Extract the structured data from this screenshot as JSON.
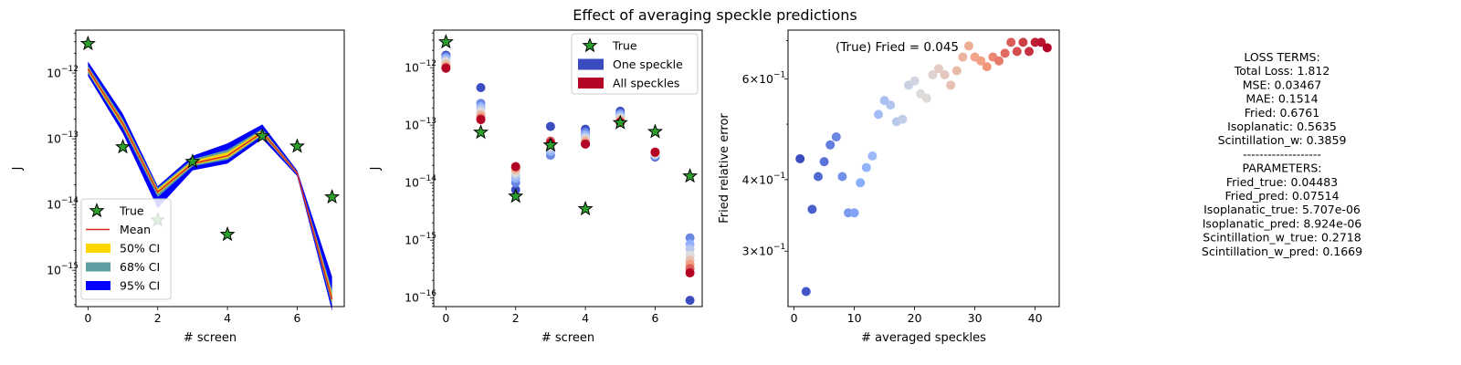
{
  "figure": {
    "title": "Effect of averaging speckle predictions"
  },
  "colors": {
    "star_fill": "#2ca02c",
    "mean_line": "#d62728",
    "ci50": "#ffd700",
    "ci68": "#5f9ea0",
    "ci95": "#0000ff",
    "one_speckle": "#3b4cc0",
    "all_speckles": "#b40426"
  },
  "chart_data": [
    {
      "type": "line",
      "name": "panel-1",
      "xlabel": "# screen",
      "ylabel": "J",
      "yscale": "log",
      "xlim": [
        -0.35,
        7.35
      ],
      "ylim": [
        2.8e-16,
        4.5e-12
      ],
      "xticks": [
        0,
        2,
        4,
        6
      ],
      "yticks": [
        {
          "value": 1e-15,
          "mant": "10",
          "exp": "−15"
        },
        {
          "value": 1e-14,
          "mant": "10",
          "exp": "−14"
        },
        {
          "value": 1e-13,
          "mant": "10",
          "exp": "−13"
        },
        {
          "value": 1e-12,
          "mant": "10",
          "exp": "−12"
        }
      ],
      "x": [
        0,
        1,
        2,
        3,
        4,
        5,
        6,
        7
      ],
      "true_values": [
        2.8e-12,
        7.5e-14,
        5.8e-15,
        4.5e-14,
        3.5e-15,
        1.1e-13,
        7.7e-14,
        1.3e-14
      ],
      "mean": [
        1.15e-12,
        1.7e-13,
        1.55e-14,
        4.2e-14,
        5.5e-14,
        1.25e-13,
        3e-14,
        3.6e-16
      ],
      "ci95_low": [
        9e-13,
        1.2e-13,
        8.8e-15,
        3.3e-14,
        4.2e-14,
        1e-13,
        2.7e-14,
        2.4e-16
      ],
      "ci95_high": [
        1.5e-12,
        2.4e-13,
        1.9e-14,
        5.5e-14,
        8.5e-14,
        1.65e-13,
        3.3e-14,
        8e-16
      ],
      "ci68_low": [
        1e-12,
        1.45e-13,
        1.3e-14,
        3.8e-14,
        4.8e-14,
        1.12e-13,
        2.85e-14,
        2.9e-16
      ],
      "ci68_high": [
        1.3e-12,
        2e-13,
        1.8e-14,
        4.9e-14,
        6.8e-14,
        1.42e-13,
        3.15e-14,
        5e-16
      ],
      "ci50_low": [
        1.05e-12,
        1.55e-13,
        1.45e-14,
        4e-14,
        5.1e-14,
        1.17e-13,
        2.9e-14,
        3.2e-16
      ],
      "ci50_high": [
        1.22e-12,
        1.85e-13,
        1.7e-14,
        4.6e-14,
        6.2e-14,
        1.35e-13,
        3.1e-14,
        4.4e-16
      ],
      "legend": {
        "position": "lower-left",
        "entries": [
          "True",
          "Mean",
          "50% CI",
          "68% CI",
          "95% CI"
        ]
      }
    },
    {
      "type": "scatter",
      "name": "panel-2",
      "xlabel": "# screen",
      "ylabel": "J",
      "yscale": "log",
      "xlim": [
        -0.35,
        7.35
      ],
      "ylim": [
        7e-17,
        4.5e-12
      ],
      "xticks": [
        0,
        2,
        4,
        6
      ],
      "yticks": [
        {
          "value": 1e-16,
          "mant": "10",
          "exp": "−16"
        },
        {
          "value": 1e-15,
          "mant": "10",
          "exp": "−15"
        },
        {
          "value": 1e-14,
          "mant": "10",
          "exp": "−14"
        },
        {
          "value": 1e-13,
          "mant": "10",
          "exp": "−13"
        },
        {
          "value": 1e-12,
          "mant": "10",
          "exp": "−12"
        }
      ],
      "x": [
        0,
        1,
        2,
        3,
        4,
        5,
        6,
        7
      ],
      "true_values": [
        2.8e-12,
        7.5e-14,
        5.8e-15,
        4.5e-14,
        3.5e-15,
        1.1e-13,
        7.7e-14,
        1.3e-14
      ],
      "one_speckle": [
        1.65e-12,
        4.5e-13,
        7.5e-15,
        9.5e-14,
        8.5e-14,
        1.75e-13,
        2.8e-14,
        9e-17
      ],
      "speckle_predictions": [
        [
          1.55e-12,
          1.45e-12,
          1.35e-12,
          1.25e-12,
          1.15e-12,
          1.05e-12,
          1e-12
        ],
        [
          2.4e-13,
          2.1e-13,
          1.9e-13,
          1.7e-13,
          1.55e-13,
          1.4e-13,
          1.3e-13
        ],
        [
          1e-14,
          1.2e-14,
          1.35e-14,
          1.5e-14,
          1.65e-14,
          1.8e-14,
          1.9e-14
        ],
        [
          3e-14,
          3.5e-14,
          3.9e-14,
          4.3e-14,
          4.6e-14,
          5e-14,
          5.3e-14
        ],
        [
          7.5e-14,
          6.8e-14,
          6.2e-14,
          5.8e-14,
          5.4e-14,
          5e-14,
          4.7e-14
        ],
        [
          1.6e-13,
          1.5e-13,
          1.4e-13,
          1.32e-13,
          1.25e-13,
          1.18e-13,
          1.12e-13
        ],
        [
          2.9e-14,
          3e-14,
          3.1e-14,
          3.2e-14,
          3.3e-14,
          3.35e-14,
          3.4e-14
        ],
        [
          1.1e-15,
          8.5e-16,
          7e-16,
          5.5e-16,
          4.5e-16,
          3.8e-16,
          3.2e-16
        ]
      ],
      "all_speckles": [
        9.8e-13,
        1.25e-13,
        1.9e-14,
        4.9e-14,
        4.7e-14,
        1.12e-13,
        3.4e-14,
        2.7e-16
      ],
      "legend": {
        "position": "upper-right",
        "entries": [
          "True",
          "One speckle",
          "All speckles"
        ]
      }
    },
    {
      "type": "scatter",
      "name": "panel-3",
      "xlabel": "# averaged speckles",
      "ylabel": "Fried relative error",
      "yscale": "log",
      "xlim": [
        -1,
        44
      ],
      "ylim": [
        0.24,
        0.73
      ],
      "xticks": [
        0,
        10,
        20,
        30,
        40
      ],
      "yticks": [
        {
          "value": 0.3,
          "mant": "3×10",
          "exp": "−1"
        },
        {
          "value": 0.4,
          "mant": "4×10",
          "exp": "−1"
        },
        {
          "value": 0.6,
          "mant": "6×10",
          "exp": "−1"
        }
      ],
      "annotation": "(True) Fried = 0.045",
      "points_x": [
        1,
        2,
        3,
        4,
        5,
        6,
        7,
        8,
        9,
        10,
        11,
        12,
        13,
        14,
        15,
        16,
        17,
        18,
        19,
        20,
        21,
        22,
        23,
        24,
        25,
        26,
        27,
        28,
        29,
        30,
        31,
        32,
        33,
        34,
        35,
        36,
        37,
        38,
        39,
        40,
        41,
        42
      ],
      "points_y": [
        0.435,
        0.255,
        0.355,
        0.405,
        0.43,
        0.46,
        0.475,
        0.405,
        0.35,
        0.35,
        0.395,
        0.42,
        0.44,
        0.52,
        0.55,
        0.54,
        0.505,
        0.51,
        0.585,
        0.595,
        0.565,
        0.555,
        0.61,
        0.625,
        0.61,
        0.585,
        0.62,
        0.655,
        0.685,
        0.655,
        0.645,
        0.63,
        0.655,
        0.645,
        0.665,
        0.695,
        0.67,
        0.695,
        0.67,
        0.695,
        0.695,
        0.68
      ]
    }
  ],
  "loss_panel": {
    "lines": [
      "LOSS TERMS:",
      "Total Loss: 1.812",
      "MSE: 0.03467",
      "MAE: 0.1514",
      "Fried: 0.6761",
      "Isoplanatic: 0.5635",
      "Scintillation_w: 0.3859",
      "-------------------",
      "PARAMETERS:",
      "Fried_true: 0.04483",
      "Fried_pred: 0.07514",
      "Isoplanatic_true: 5.707e-06",
      "Isoplanatic_pred: 8.924e-06",
      "Scintillation_w_true: 0.2718",
      "Scintillation_w_pred: 0.1669"
    ]
  }
}
